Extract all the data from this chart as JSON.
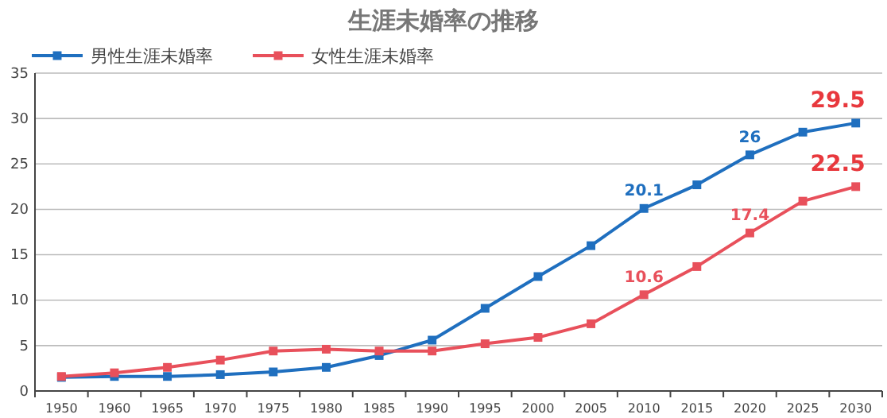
{
  "chart_data": {
    "type": "line",
    "title": "生涯未婚率の推移",
    "categories": [
      "1950",
      "1960",
      "1965",
      "1970",
      "1975",
      "1980",
      "1985",
      "1990",
      "1995",
      "2000",
      "2005",
      "2010",
      "2015",
      "2020",
      "2025",
      "2030"
    ],
    "series": [
      {
        "name": "男性生涯未婚率",
        "color": "#1f6fbf",
        "values": [
          1.5,
          1.6,
          1.6,
          1.8,
          2.1,
          2.6,
          3.9,
          5.6,
          9.1,
          12.6,
          16.0,
          20.1,
          22.7,
          26,
          28.5,
          29.5
        ],
        "value_labels": [
          null,
          null,
          null,
          null,
          null,
          null,
          null,
          null,
          null,
          null,
          null,
          "20.1",
          null,
          "26",
          null,
          null
        ]
      },
      {
        "name": "女性生涯未婚率",
        "color": "#e8505b",
        "values": [
          1.6,
          2.0,
          2.6,
          3.4,
          4.4,
          4.6,
          4.4,
          4.4,
          5.2,
          5.9,
          7.4,
          10.6,
          13.7,
          17.4,
          20.9,
          22.5
        ],
        "value_labels": [
          null,
          null,
          null,
          null,
          null,
          null,
          null,
          null,
          null,
          null,
          null,
          "10.6",
          null,
          "17.4",
          null,
          null
        ]
      }
    ],
    "annotations": [
      {
        "text": "29.5",
        "x": "2030",
        "y": 29.5
      },
      {
        "text": "22.5",
        "x": "2030",
        "y": 22.5
      }
    ],
    "ylim": [
      0,
      35
    ],
    "yticks": [
      0,
      5,
      10,
      15,
      20,
      25,
      30,
      35
    ],
    "grid": "y",
    "legend": "top left",
    "marker": "square",
    "line_style": "solid"
  }
}
